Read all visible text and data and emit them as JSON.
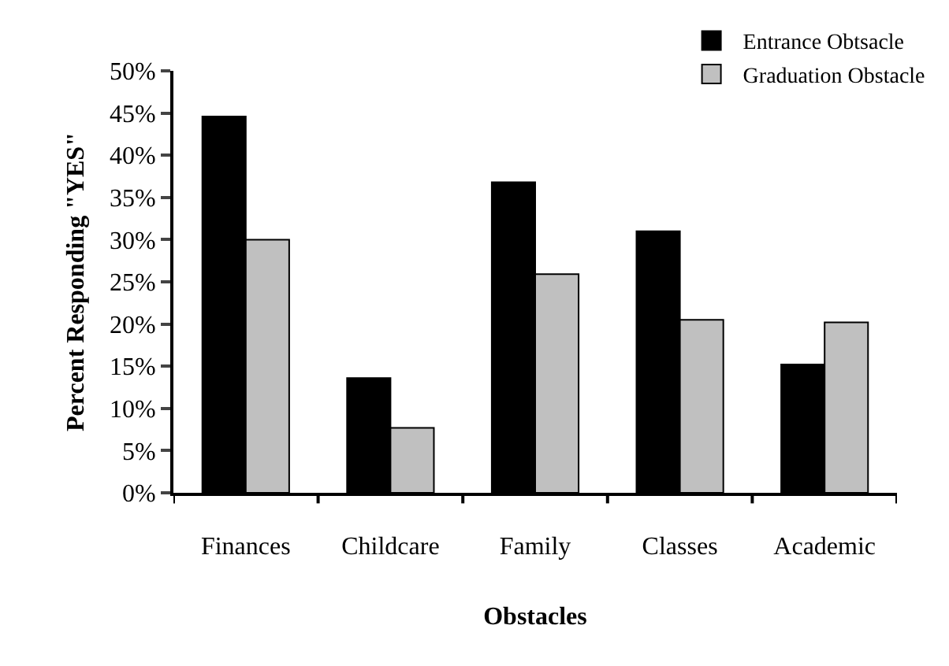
{
  "chart_data": {
    "type": "bar",
    "xlabel": "Obstacles",
    "ylabel": "Percent Responding \"YES\"",
    "categories": [
      "Finances",
      "Childcare",
      "Family",
      "Classes",
      "Academic"
    ],
    "series": [
      {
        "name": "Entrance Obtsacle",
        "color": "#000000",
        "values": [
          44.6,
          13.6,
          36.8,
          31.0,
          15.2
        ]
      },
      {
        "name": "Graduation Obstacle",
        "color": "#c0c0c0",
        "values": [
          30.0,
          7.7,
          25.9,
          20.5,
          20.2
        ]
      }
    ],
    "ylim": [
      0,
      50
    ],
    "yticks": [
      {
        "value": 0,
        "label": "0%"
      },
      {
        "value": 5,
        "label": "5%"
      },
      {
        "value": 10,
        "label": "10%"
      },
      {
        "value": 15,
        "label": "15%"
      },
      {
        "value": 20,
        "label": "20%"
      },
      {
        "value": 25,
        "label": "25%"
      },
      {
        "value": 30,
        "label": "30%"
      },
      {
        "value": 35,
        "label": "35%"
      },
      {
        "value": 40,
        "label": "40%"
      },
      {
        "value": 45,
        "label": "45%"
      },
      {
        "value": 50,
        "label": "50%"
      }
    ],
    "grid": false,
    "legend": "top right"
  }
}
